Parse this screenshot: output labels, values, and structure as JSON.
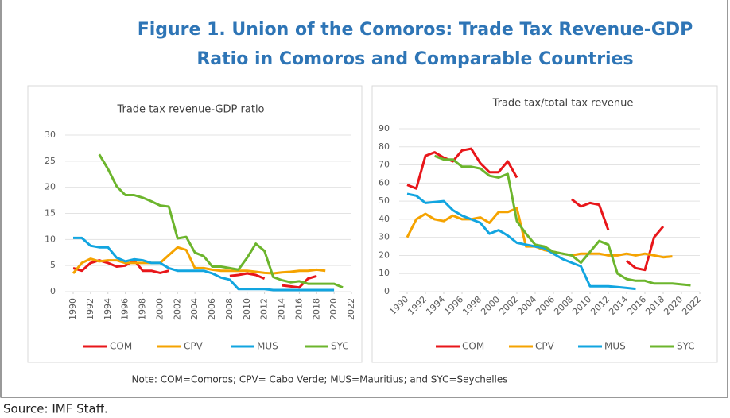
{
  "figure_title": [
    "Figure 1. Union of the Comoros: Trade Tax Revenue-GDP",
    "Ratio in Comoros and Comparable Countries"
  ],
  "note": "Note: COM=Comoros; CPV= Cabo Verde; MUS=Mauritius; and SYC=Seychelles",
  "source": "Source: IMF Staff.",
  "chart_data": [
    {
      "type": "line",
      "title": "Trade tax revenue-GDP ratio",
      "x": [
        1990,
        1991,
        1992,
        1993,
        1994,
        1995,
        1996,
        1997,
        1998,
        1999,
        2000,
        2001,
        2002,
        2003,
        2004,
        2005,
        2006,
        2007,
        2008,
        2009,
        2010,
        2011,
        2012,
        2013,
        2014,
        2015,
        2016,
        2017,
        2018,
        2019,
        2020,
        2021
      ],
      "xlim": [
        1990,
        2022
      ],
      "xticks": [
        1990,
        1992,
        1994,
        1996,
        1998,
        2000,
        2002,
        2004,
        2006,
        2008,
        2010,
        2012,
        2014,
        2016,
        2018,
        2020,
        2022
      ],
      "ylim": [
        0,
        30
      ],
      "yticks": [
        0,
        5,
        10,
        15,
        20,
        25,
        30
      ],
      "grid": true,
      "legend": "bottom",
      "series": [
        {
          "name": "COM",
          "color": "#e8161a",
          "values": [
            4.5,
            4,
            5.5,
            6,
            5.5,
            4.8,
            5,
            6,
            4,
            4,
            3.6,
            4,
            null,
            null,
            null,
            null,
            null,
            null,
            3,
            3.2,
            3.5,
            3.2,
            2.5,
            null,
            1.2,
            1,
            0.8,
            2.5,
            3,
            null,
            null,
            null
          ]
        },
        {
          "name": "CPV",
          "color": "#f5a300",
          "values": [
            3.5,
            5.5,
            6.3,
            5.8,
            6,
            6,
            5.5,
            5.5,
            5.5,
            5.5,
            5.5,
            7,
            8.5,
            8,
            4.5,
            4.5,
            4.2,
            4,
            4,
            4,
            4,
            3.8,
            3.6,
            3.5,
            3.7,
            3.8,
            4,
            4,
            4.2,
            4,
            null,
            null
          ]
        },
        {
          "name": "MUS",
          "color": "#12a5e0",
          "values": [
            10.3,
            10.3,
            8.8,
            8.5,
            8.5,
            6.5,
            5.8,
            6.2,
            6,
            5.5,
            5.5,
            4.5,
            4,
            4,
            4,
            4,
            3.5,
            2.7,
            2.3,
            0.5,
            0.5,
            0.5,
            0.5,
            0.3,
            0.3,
            0.3,
            0.3,
            0.3,
            0.3,
            0.3,
            0.3,
            null
          ]
        },
        {
          "name": "SYC",
          "color": "#6cb52d",
          "values": [
            null,
            null,
            null,
            26.3,
            23.5,
            20.2,
            18.5,
            18.5,
            18,
            17.3,
            16.5,
            16.3,
            10.2,
            10.5,
            7.5,
            6.8,
            4.8,
            4.8,
            4.5,
            4.2,
            6.5,
            9.2,
            7.8,
            2.8,
            2.2,
            1.8,
            2,
            1.5,
            1.5,
            1.5,
            1.5,
            0.8
          ]
        }
      ]
    },
    {
      "type": "line",
      "title": "Trade tax/total tax revenue",
      "x": [
        1990,
        1991,
        1992,
        1993,
        1994,
        1995,
        1996,
        1997,
        1998,
        1999,
        2000,
        2001,
        2002,
        2003,
        2004,
        2005,
        2006,
        2007,
        2008,
        2009,
        2010,
        2011,
        2012,
        2013,
        2014,
        2015,
        2016,
        2017,
        2018,
        2019,
        2020,
        2021
      ],
      "xlim": [
        1990,
        2022
      ],
      "xticks": [
        1990,
        1992,
        1994,
        1996,
        1998,
        2000,
        2002,
        2004,
        2006,
        2008,
        2010,
        2012,
        2014,
        2016,
        2018,
        2020,
        2022
      ],
      "ylim": [
        0,
        90
      ],
      "yticks": [
        0,
        10,
        20,
        30,
        40,
        50,
        60,
        70,
        80,
        90
      ],
      "grid": true,
      "legend": "bottom",
      "series": [
        {
          "name": "COM",
          "color": "#e8161a",
          "values": [
            59,
            57,
            75,
            77,
            74,
            72,
            78,
            79,
            71,
            66,
            66,
            72,
            63,
            null,
            null,
            null,
            null,
            null,
            51,
            47,
            49,
            48,
            34,
            null,
            17,
            13,
            12,
            30,
            36,
            null,
            null,
            null
          ]
        },
        {
          "name": "CPV",
          "color": "#f5a300",
          "values": [
            30,
            40,
            43,
            40,
            39,
            42,
            40,
            40,
            41,
            38,
            44,
            44,
            46,
            25,
            25,
            23,
            22,
            21,
            20,
            21,
            21,
            21,
            20,
            20,
            21,
            20,
            21,
            20,
            19,
            19.5,
            null,
            null
          ]
        },
        {
          "name": "MUS",
          "color": "#12a5e0",
          "values": [
            54,
            53,
            49,
            49.5,
            50,
            45,
            42,
            40,
            38,
            32,
            34,
            31,
            27,
            26,
            25,
            24,
            21,
            18,
            16,
            14,
            3,
            3,
            3,
            2.5,
            2,
            1.5,
            null,
            null,
            null,
            null,
            null,
            null
          ]
        },
        {
          "name": "SYC",
          "color": "#6cb52d",
          "values": [
            null,
            null,
            null,
            75,
            73,
            73,
            69,
            69,
            68,
            64,
            63,
            65,
            39,
            32,
            26,
            25,
            22,
            21,
            20,
            16,
            22,
            28,
            26,
            10,
            7,
            6,
            6,
            4.5,
            4.5,
            4.5,
            4,
            3.5
          ]
        }
      ]
    }
  ]
}
